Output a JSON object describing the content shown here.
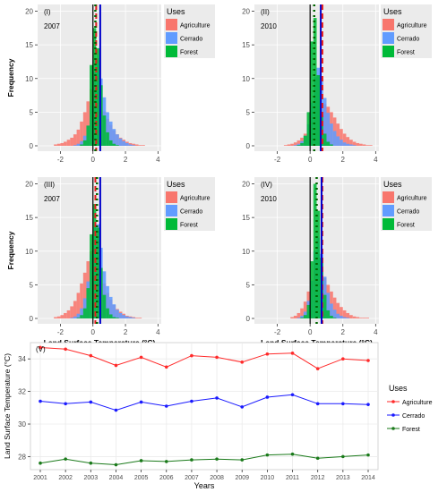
{
  "colors": {
    "agriculture": "#f8766d",
    "cerrado": "#619cff",
    "forest": "#00ba38",
    "panel_bg": "#ebebeb",
    "dashed_red": "#e41a1c",
    "dashed_blue": "#0000cc",
    "dotted_green": "#006400",
    "solid_line": "#000000"
  },
  "chart_data": [
    {
      "type": "bar",
      "panel": "(I)",
      "year": "2007",
      "ylabel": "Frequency",
      "xlabel": "",
      "xticks": [
        "-2",
        "0",
        "2",
        "4"
      ],
      "yticks": [
        "0",
        "5",
        "10",
        "15",
        "20"
      ],
      "xlim": [
        -3.4,
        4.2
      ],
      "ylim": [
        -0.8,
        21
      ],
      "bin_width": 0.2,
      "bin_starts": [
        -2.4,
        -2.2,
        -2.0,
        -1.8,
        -1.6,
        -1.4,
        -1.2,
        -1.0,
        -0.8,
        -0.6,
        -0.4,
        -0.2,
        0.0,
        0.2,
        0.4,
        0.6,
        0.8,
        1.0,
        1.2,
        1.4,
        1.6,
        1.8,
        2.0,
        2.2,
        2.4,
        2.6,
        2.8,
        3.0,
        3.2
      ],
      "series": [
        {
          "name": "Agriculture",
          "values": [
            0.2,
            0.3,
            0.4,
            0.6,
            0.9,
            1.2,
            1.7,
            2.4,
            3.6,
            5.0,
            6.6,
            8.4,
            9.0,
            8.0,
            6.7,
            5.1,
            4.0,
            3.1,
            2.3,
            1.7,
            1.2,
            0.9,
            0.6,
            0.4,
            0.3,
            0.2,
            0.1,
            0.1,
            0.0
          ]
        },
        {
          "name": "Cerrado",
          "values": [
            0,
            0,
            0,
            0,
            0,
            0,
            0.1,
            0.3,
            0.7,
            1.5,
            3.0,
            6.0,
            11.0,
            13.0,
            10.0,
            7.2,
            5.0,
            3.6,
            2.5,
            1.7,
            1.1,
            0.7,
            0.4,
            0.2,
            0.1,
            0,
            0,
            0,
            0
          ]
        },
        {
          "name": "Forest",
          "values": [
            0,
            0,
            0,
            0,
            0,
            0,
            0,
            0,
            0.2,
            0.8,
            3.0,
            12.0,
            17.5,
            14.5,
            9.0,
            4.5,
            2.0,
            0.8,
            0.3,
            0.1,
            0,
            0,
            0,
            0,
            0,
            0,
            0,
            0,
            0
          ]
        }
      ],
      "vlines": [
        {
          "style": "solid",
          "x": 0.0
        },
        {
          "style": "dashed-red",
          "x": 0.2
        },
        {
          "style": "solid-blue",
          "x": 0.45
        },
        {
          "style": "dotted-green",
          "x": 0.15
        }
      ],
      "legend_title": "Uses",
      "legend": [
        "Agriculture",
        "Cerrado",
        "Forest"
      ]
    },
    {
      "type": "bar",
      "panel": "(II)",
      "year": "2010",
      "ylabel": "",
      "xlabel": "",
      "xticks": [
        "-2",
        "0",
        "2",
        "4"
      ],
      "yticks": [
        "0",
        "5",
        "10",
        "15",
        "20"
      ],
      "xlim": [
        -3.4,
        4.2
      ],
      "ylim": [
        -0.8,
        21
      ],
      "bin_width": 0.2,
      "bin_starts": [
        -1.6,
        -1.4,
        -1.2,
        -1.0,
        -0.8,
        -0.6,
        -0.4,
        -0.2,
        0.0,
        0.2,
        0.4,
        0.6,
        0.8,
        1.0,
        1.2,
        1.4,
        1.6,
        1.8,
        2.0,
        2.2,
        2.4,
        2.6,
        2.8,
        3.0,
        3.2,
        3.4,
        3.6
      ],
      "series": [
        {
          "name": "Agriculture",
          "values": [
            0.1,
            0.2,
            0.3,
            0.5,
            0.8,
            1.2,
            1.8,
            2.6,
            3.6,
            4.6,
            5.4,
            6.0,
            6.2,
            5.8,
            5.0,
            4.2,
            3.3,
            2.5,
            1.8,
            1.3,
            0.9,
            0.6,
            0.4,
            0.3,
            0.2,
            0.1,
            0.1
          ]
        },
        {
          "name": "Cerrado",
          "values": [
            0,
            0,
            0,
            0.1,
            0.3,
            0.7,
            1.5,
            3.2,
            6.4,
            10.2,
            11.6,
            9.8,
            7.1,
            4.9,
            3.3,
            2.2,
            1.4,
            0.9,
            0.5,
            0.3,
            0.2,
            0.1,
            0,
            0,
            0,
            0,
            0
          ]
        },
        {
          "name": "Forest",
          "values": [
            0,
            0,
            0,
            0,
            0.1,
            0.4,
            1.5,
            5.0,
            15.5,
            19.0,
            10.5,
            4.5,
            1.8,
            0.6,
            0.2,
            0,
            0,
            0,
            0,
            0,
            0,
            0,
            0,
            0,
            0,
            0,
            0
          ]
        }
      ],
      "vlines": [
        {
          "style": "solid",
          "x": 0.0
        },
        {
          "style": "dotted-green",
          "x": 0.25
        },
        {
          "style": "solid-blue",
          "x": 0.65
        },
        {
          "style": "dashed-red",
          "x": 0.75
        }
      ],
      "legend_title": "Uses",
      "legend": [
        "Agriculture",
        "Cerrado",
        "Forest"
      ]
    },
    {
      "type": "bar",
      "panel": "(III)",
      "year": "2007",
      "ylabel": "Frequency",
      "xlabel": "Land Surface Temperature (°C)",
      "xticks": [
        "-2",
        "0",
        "2",
        "4"
      ],
      "yticks": [
        "0",
        "5",
        "10",
        "15",
        "20"
      ],
      "xlim": [
        -3.4,
        4.2
      ],
      "ylim": [
        -0.8,
        21
      ],
      "bin_width": 0.2,
      "bin_starts": [
        -2.4,
        -2.2,
        -2.0,
        -1.8,
        -1.6,
        -1.4,
        -1.2,
        -1.0,
        -0.8,
        -0.6,
        -0.4,
        -0.2,
        0.0,
        0.2,
        0.4,
        0.6,
        0.8,
        1.0,
        1.2,
        1.4,
        1.6,
        1.8,
        2.0,
        2.2,
        2.4,
        2.6,
        2.8
      ],
      "series": [
        {
          "name": "Agriculture",
          "values": [
            0.2,
            0.3,
            0.5,
            0.8,
            1.2,
            1.8,
            2.6,
            3.8,
            5.2,
            6.8,
            8.5,
            10.0,
            10.3,
            9.0,
            7.0,
            5.2,
            3.8,
            2.8,
            2.0,
            1.4,
            1.0,
            0.7,
            0.4,
            0.3,
            0.2,
            0.1,
            0.1
          ]
        },
        {
          "name": "Cerrado",
          "values": [
            0,
            0,
            0,
            0,
            0,
            0.1,
            0.3,
            0.7,
            1.5,
            3.0,
            5.5,
            9.5,
            13.5,
            14.0,
            10.5,
            7.0,
            4.8,
            3.2,
            2.1,
            1.3,
            0.8,
            0.5,
            0.3,
            0.2,
            0.1,
            0,
            0
          ]
        },
        {
          "name": "Forest",
          "values": [
            0,
            0,
            0,
            0,
            0,
            0,
            0,
            0.1,
            0.5,
            1.5,
            4.5,
            12.5,
            17.0,
            13.5,
            7.5,
            3.5,
            1.5,
            0.6,
            0.2,
            0.1,
            0,
            0,
            0,
            0,
            0,
            0,
            0
          ]
        }
      ],
      "vlines": [
        {
          "style": "solid",
          "x": 0.0
        },
        {
          "style": "dashed-red",
          "x": 0.15
        },
        {
          "style": "dotted-green",
          "x": 0.25
        },
        {
          "style": "solid-blue",
          "x": 0.45
        }
      ],
      "legend_title": "Uses",
      "legend": [
        "Agriculture",
        "Cerrado",
        "Forest"
      ]
    },
    {
      "type": "bar",
      "panel": "(IV)",
      "year": "2010",
      "ylabel": "",
      "xlabel": "Land Surface Temperature (°C)",
      "xticks": [
        "-2",
        "0",
        "2",
        "4"
      ],
      "yticks": [
        "0",
        "5",
        "10",
        "15",
        "20"
      ],
      "xlim": [
        -3.4,
        4.2
      ],
      "ylim": [
        -0.8,
        21
      ],
      "bin_width": 0.2,
      "bin_starts": [
        -1.2,
        -1.0,
        -0.8,
        -0.6,
        -0.4,
        -0.2,
        0.0,
        0.2,
        0.4,
        0.6,
        0.8,
        1.0,
        1.2,
        1.4,
        1.6,
        1.8,
        2.0,
        2.2,
        2.4,
        2.6,
        2.8,
        3.0,
        3.2,
        3.4
      ],
      "series": [
        {
          "name": "Agriculture",
          "values": [
            0.2,
            0.4,
            0.8,
            1.5,
            2.5,
            4.0,
            5.6,
            7.0,
            7.4,
            7.0,
            6.0,
            5.0,
            4.0,
            3.1,
            2.3,
            1.7,
            1.2,
            0.8,
            0.5,
            0.3,
            0.2,
            0.1,
            0.1,
            0.1
          ]
        },
        {
          "name": "Cerrado",
          "values": [
            0,
            0,
            0.1,
            0.4,
            1.0,
            2.6,
            5.6,
            10.0,
            12.0,
            9.6,
            6.2,
            3.8,
            2.2,
            1.3,
            0.7,
            0.4,
            0.2,
            0.1,
            0,
            0,
            0,
            0,
            0,
            0
          ]
        },
        {
          "name": "Forest",
          "values": [
            0,
            0,
            0,
            0.1,
            0.5,
            2.0,
            8.5,
            20.0,
            16.0,
            9.0,
            3.5,
            1.2,
            0.4,
            0.1,
            0,
            0,
            0,
            0,
            0,
            0,
            0,
            0,
            0,
            0
          ]
        }
      ],
      "vlines": [
        {
          "style": "solid",
          "x": 0.0
        },
        {
          "style": "dotted-green",
          "x": 0.4
        },
        {
          "style": "dashed-red",
          "x": 0.75
        },
        {
          "style": "solid-blue",
          "x": 0.7
        }
      ],
      "legend_title": "Uses",
      "legend": [
        "Agriculture",
        "Cerrado",
        "Forest"
      ]
    },
    {
      "type": "line",
      "panel": "(V)",
      "xlabel": "Years",
      "ylabel": "Land Surface Temperature (°C)",
      "categories": [
        "2001",
        "2002",
        "2003",
        "2004",
        "2005",
        "2006",
        "2007",
        "2008",
        "2009",
        "2010",
        "2011",
        "2012",
        "2013",
        "2014"
      ],
      "yticks": [
        "28",
        "30",
        "32",
        "34"
      ],
      "ylim": [
        27.2,
        35.0
      ],
      "series": [
        {
          "name": "Agriculture",
          "values": [
            34.7,
            34.6,
            34.2,
            33.6,
            34.1,
            33.5,
            34.2,
            34.1,
            33.8,
            34.3,
            34.35,
            33.4,
            34.0,
            33.9
          ]
        },
        {
          "name": "Cerrado",
          "values": [
            31.4,
            31.25,
            31.35,
            30.85,
            31.35,
            31.1,
            31.4,
            31.6,
            31.05,
            31.65,
            31.8,
            31.25,
            31.25,
            31.2
          ]
        },
        {
          "name": "Forest",
          "values": [
            27.6,
            27.85,
            27.6,
            27.5,
            27.75,
            27.7,
            27.8,
            27.85,
            27.8,
            28.1,
            28.15,
            27.9,
            28.0,
            28.1
          ]
        }
      ],
      "legend_title": "Uses",
      "legend": [
        "Agriculture",
        "Cerrado",
        "Forest"
      ]
    }
  ]
}
